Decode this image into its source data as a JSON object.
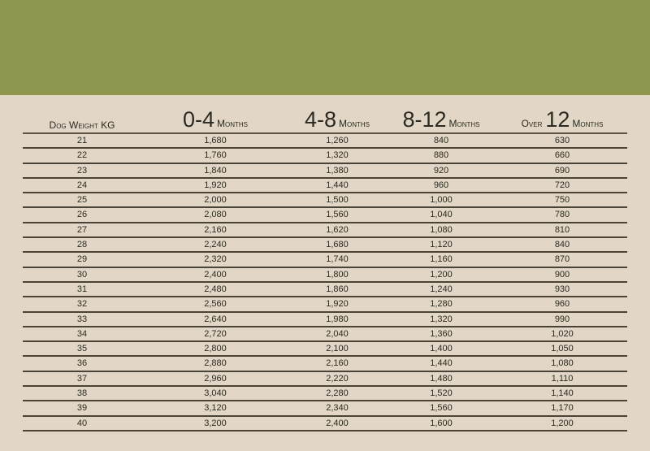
{
  "colors": {
    "banner": "#8f974f",
    "background": "#e2d7c6",
    "text": "#2b2a22"
  },
  "table": {
    "headers": [
      {
        "big": "",
        "small": "Dog Weight KG",
        "prefix": ""
      },
      {
        "prefix": "",
        "big": "0-4",
        "small": "Months"
      },
      {
        "prefix": "",
        "big": "4-8",
        "small": "Months"
      },
      {
        "prefix": "",
        "big": "8-12",
        "small": "Months"
      },
      {
        "prefix": "Over",
        "big": "12",
        "small": "Months"
      }
    ],
    "rows": [
      [
        "21",
        "1,680",
        "1,260",
        "840",
        "630"
      ],
      [
        "22",
        "1,760",
        "1,320",
        "880",
        "660"
      ],
      [
        "23",
        "1,840",
        "1,380",
        "920",
        "690"
      ],
      [
        "24",
        "1,920",
        "1,440",
        "960",
        "720"
      ],
      [
        "25",
        "2,000",
        "1,500",
        "1,000",
        "750"
      ],
      [
        "26",
        "2,080",
        "1,560",
        "1,040",
        "780"
      ],
      [
        "27",
        "2,160",
        "1,620",
        "1,080",
        "810"
      ],
      [
        "28",
        "2,240",
        "1,680",
        "1,120",
        "840"
      ],
      [
        "29",
        "2,320",
        "1,740",
        "1,160",
        "870"
      ],
      [
        "30",
        "2,400",
        "1,800",
        "1,200",
        "900"
      ],
      [
        "31",
        "2,480",
        "1,860",
        "1,240",
        "930"
      ],
      [
        "32",
        "2,560",
        "1,920",
        "1,280",
        "960"
      ],
      [
        "33",
        "2,640",
        "1,980",
        "1,320",
        "990"
      ],
      [
        "34",
        "2,720",
        "2,040",
        "1,360",
        "1,020"
      ],
      [
        "35",
        "2,800",
        "2,100",
        "1,400",
        "1,050"
      ],
      [
        "36",
        "2,880",
        "2,160",
        "1,440",
        "1,080"
      ],
      [
        "37",
        "2,960",
        "2,220",
        "1,480",
        "1,110"
      ],
      [
        "38",
        "3,040",
        "2,280",
        "1,520",
        "1,140"
      ],
      [
        "39",
        "3,120",
        "2,340",
        "1,560",
        "1,170"
      ],
      [
        "40",
        "3,200",
        "2,400",
        "1,600",
        "1,200"
      ]
    ]
  }
}
